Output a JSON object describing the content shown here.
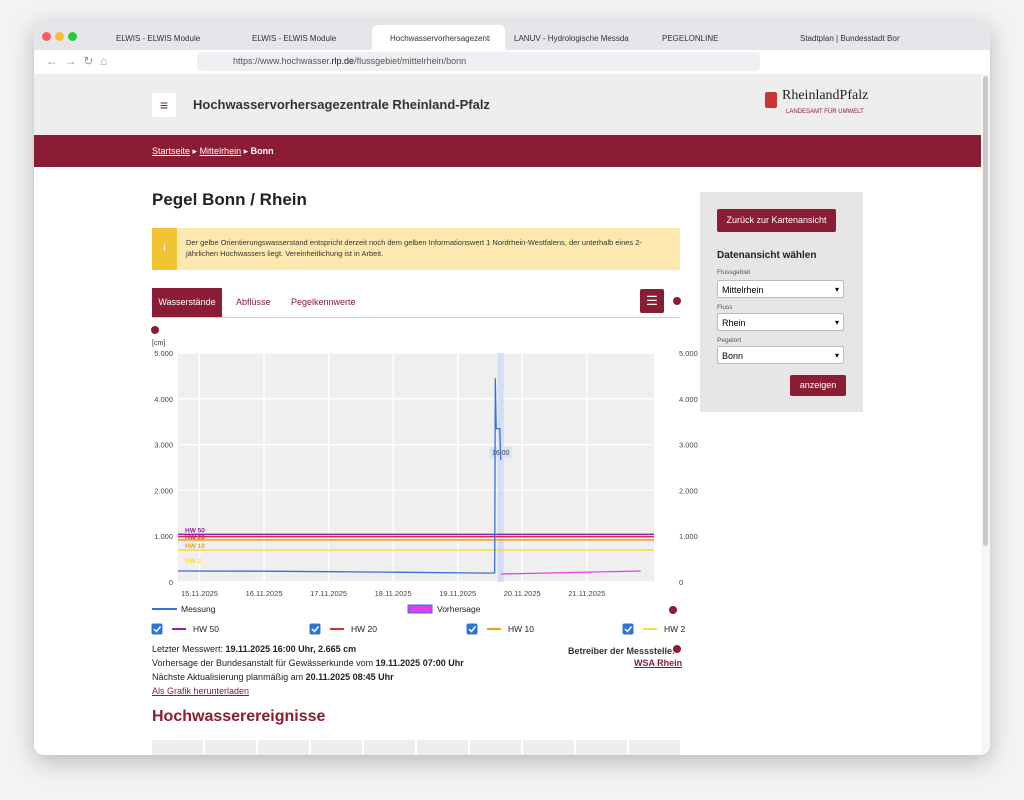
{
  "browser": {
    "tabs": [
      "ELWIS - ELWIS Module",
      "ELWIS - ELWIS Module",
      "Hochwasservorhersagezentrale",
      "LANUV - Hydrologische Messdaten",
      "PEGELONLINE",
      "Stadtplan | Bundesstadt Bonn"
    ],
    "url": {
      "prefix": "https://www.hochwasser.",
      "domain": "rlp.de",
      "path": "/flussgebiet/mittelrhein/bonn"
    }
  },
  "header": {
    "title": "Hochwasservorhersagezentrale Rheinland-Pfalz",
    "logo_name": "RheinlandPfalz",
    "logo_sub": "LANDESAMT FÜR UMWELT"
  },
  "breadcrumbs": [
    "Startseite",
    "Mittelrhein",
    "Bonn"
  ],
  "page_title": "Pegel Bonn / Rhein",
  "notice": "Der gelbe Orientierungswasserstand entspricht derzeit noch dem gelben Informationswert 1 Nordrhein-Westfalens, der unterhalb eines 2-jährlichen Hochwassers liegt. Vereinheitlichung ist in Arbeit.",
  "tabs": [
    "Wasserstände",
    "Abflüsse",
    "Pegelkennwerte"
  ],
  "chart_data": {
    "type": "line",
    "y_label": "[cm]",
    "xlim": [
      "14.11.2025 16:00",
      "22.11.2025 01:00"
    ],
    "xticks": [
      "15.11.2025",
      "16.11.2025",
      "17.11.2025",
      "18.11.2025",
      "19.11.2025",
      "20.11.2025",
      "21.11.2025"
    ],
    "ylim": [
      0,
      5000
    ],
    "yticks": [
      0,
      {
        "value": 1000,
        "label": "1.000"
      },
      {
        "value": 2000,
        "label": "2.000"
      },
      {
        "value": 3000,
        "label": "3.000"
      },
      {
        "value": 4000,
        "label": "4.000"
      },
      {
        "value": 5000,
        "label": "5.000"
      }
    ],
    "grid": true,
    "series": [
      {
        "name": "Messung",
        "color": "#3a6fd8",
        "x": [
          "14.11.2025 16:00",
          "16.11.2025 00:00",
          "17.11.2025 00:00",
          "18.11.2025 00:00",
          "19.11.2025 12:00",
          "19.11.2025 13:45",
          "19.11.2025 14:00",
          "19.11.2025 14:20",
          "19.11.2025 15:40",
          "19.11.2025 16:00"
        ],
        "values": [
          240,
          235,
          225,
          215,
          195,
          200,
          4450,
          3350,
          3350,
          2665
        ]
      },
      {
        "name": "Vorhersage",
        "color": "#e040e8",
        "x": [
          "19.11.2025 16:00",
          "21.11.2025 20:00"
        ],
        "values": [
          175,
          240
        ]
      }
    ],
    "thresholds": [
      {
        "name": "HW 50",
        "color": "#8e24aa",
        "value": 1040,
        "checked": true
      },
      {
        "name": "HW 20",
        "color": "#d32f2f",
        "value": 990,
        "checked": true
      },
      {
        "name": "HW 10",
        "color": "#f39c12",
        "value": 920,
        "checked": true
      },
      {
        "name": "HW 2",
        "color": "#f2dd3c",
        "value": 700,
        "checked": true
      }
    ],
    "annotation": {
      "text": "16:00",
      "x": "19.11.2025 16:00"
    }
  },
  "status": {
    "last_label": "Letzter Messwert:",
    "last_value": "19.11.2025 16:00 Uhr, 2.665 cm",
    "forecast_label": "Vorhersage der Bundesanstalt für Gewässerkunde vom",
    "forecast_value": "19.11.2025 07:00 Uhr",
    "update_label": "Nächste Aktualisierung planmäßig am",
    "update_value": "20.11.2025 08:45 Uhr",
    "download": "Als Grafik herunterladen",
    "operator_label": "Betreiber der Messstelle:",
    "operator": "WSA Rhein"
  },
  "section_title": "Hochwasserereignisse",
  "sidebar": {
    "back_button": "Zurück zur Kartenansicht",
    "heading": "Datenansicht wählen",
    "fields": [
      {
        "label": "Flussgebiet",
        "value": "Mittelrhein"
      },
      {
        "label": "Fluss",
        "value": "Rhein"
      },
      {
        "label": "Pegelort",
        "value": "Bonn"
      }
    ],
    "submit": "anzeigen"
  }
}
